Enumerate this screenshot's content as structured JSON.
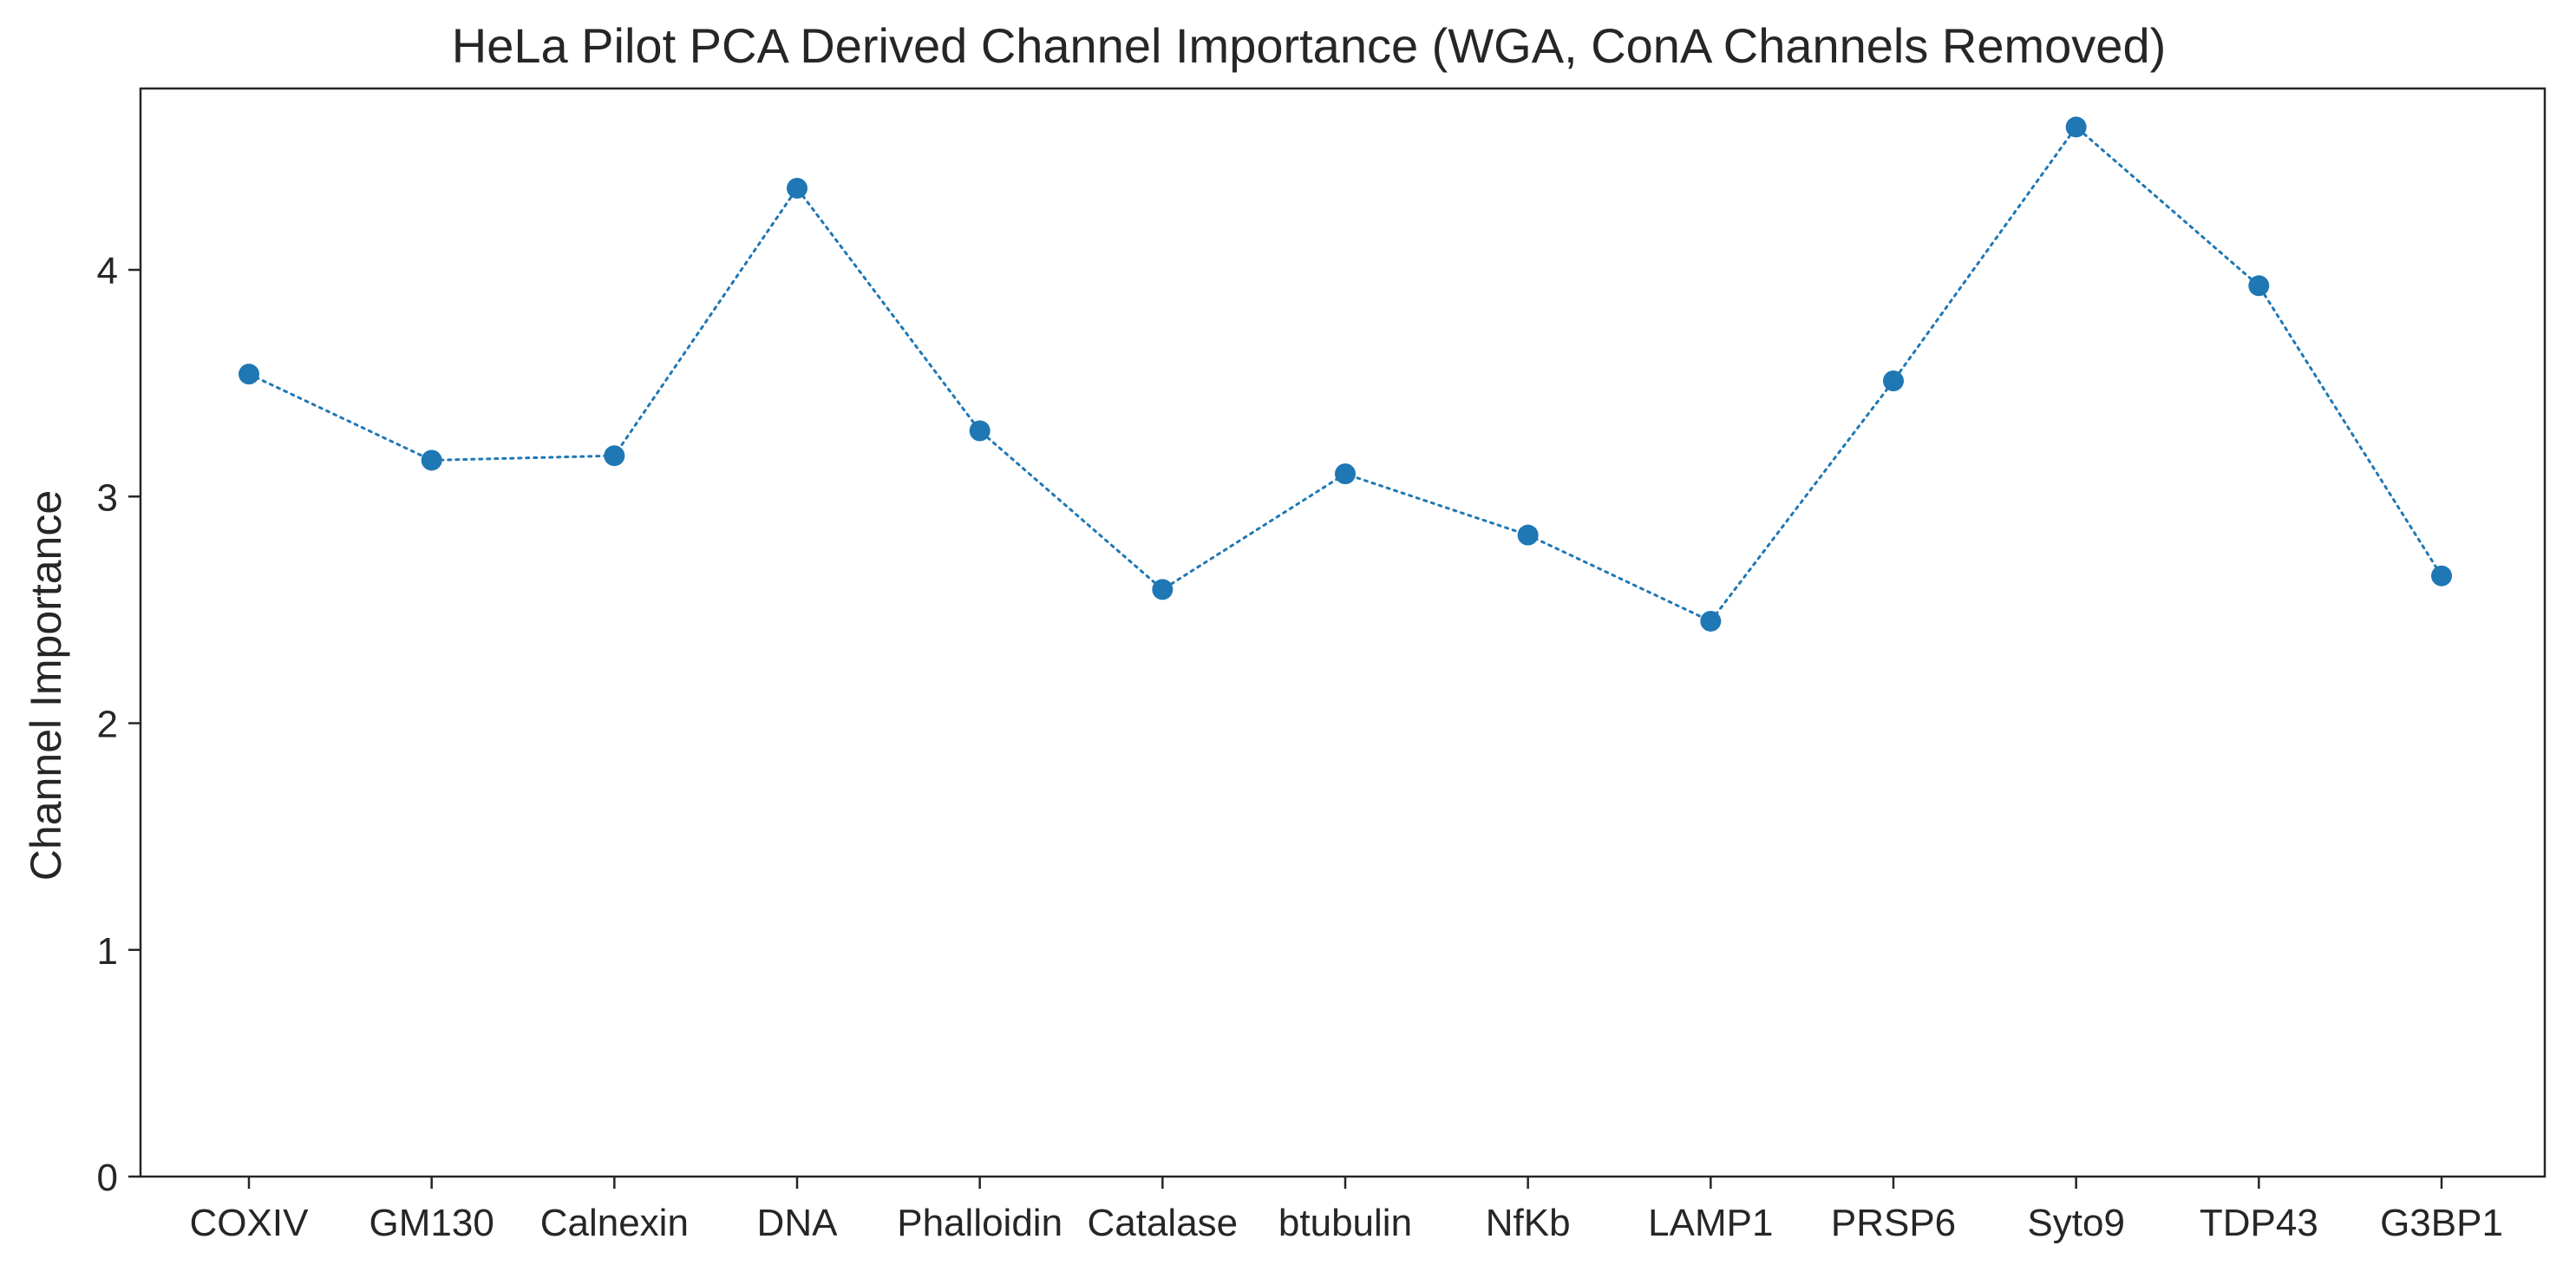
{
  "chart_data": {
    "type": "line",
    "title": "HeLa Pilot PCA Derived Channel Importance (WGA, ConA Channels Removed)",
    "xlabel": "",
    "ylabel": "Channel Importance",
    "categories": [
      "COXIV",
      "GM130",
      "Calnexin",
      "DNA",
      "Phalloidin",
      "Catalase",
      "btubulin",
      "NfKb",
      "LAMP1",
      "PRSP6",
      "Syto9",
      "TDP43",
      "G3BP1"
    ],
    "values": [
      3.54,
      3.16,
      3.18,
      4.36,
      3.29,
      2.59,
      3.1,
      2.83,
      2.45,
      3.51,
      4.63,
      3.93,
      2.65
    ],
    "ylim": [
      0,
      4.8
    ],
    "yticks": [
      0,
      1,
      2,
      3,
      4
    ],
    "grid": false,
    "line_style": "dotted",
    "marker": "circle",
    "color": "#1f77b4"
  }
}
